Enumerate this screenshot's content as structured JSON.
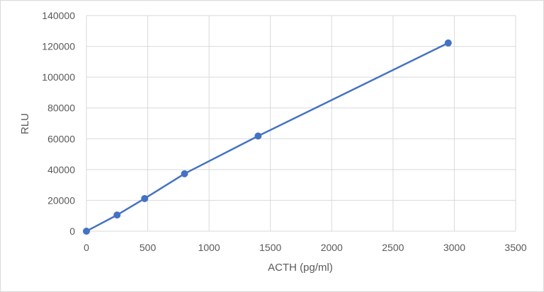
{
  "chart_data": {
    "type": "scatter",
    "title": "",
    "xlabel": "ACTH (pg/ml)",
    "ylabel": "RLU",
    "xlim": [
      0,
      3500
    ],
    "ylim": [
      0,
      140000
    ],
    "x_ticks": [
      0,
      500,
      1000,
      1500,
      2000,
      2500,
      3000,
      3500
    ],
    "y_ticks": [
      0,
      20000,
      40000,
      60000,
      80000,
      100000,
      120000,
      140000
    ],
    "grid": true,
    "legend": "none",
    "series": [
      {
        "color": "#4472c4",
        "marker": "circle",
        "line": "straight",
        "points": [
          {
            "x": 0,
            "y": 0
          },
          {
            "x": 250,
            "y": 10500
          },
          {
            "x": 475,
            "y": 21200
          },
          {
            "x": 800,
            "y": 37300
          },
          {
            "x": 1400,
            "y": 61800
          },
          {
            "x": 2950,
            "y": 122200
          }
        ]
      }
    ]
  }
}
